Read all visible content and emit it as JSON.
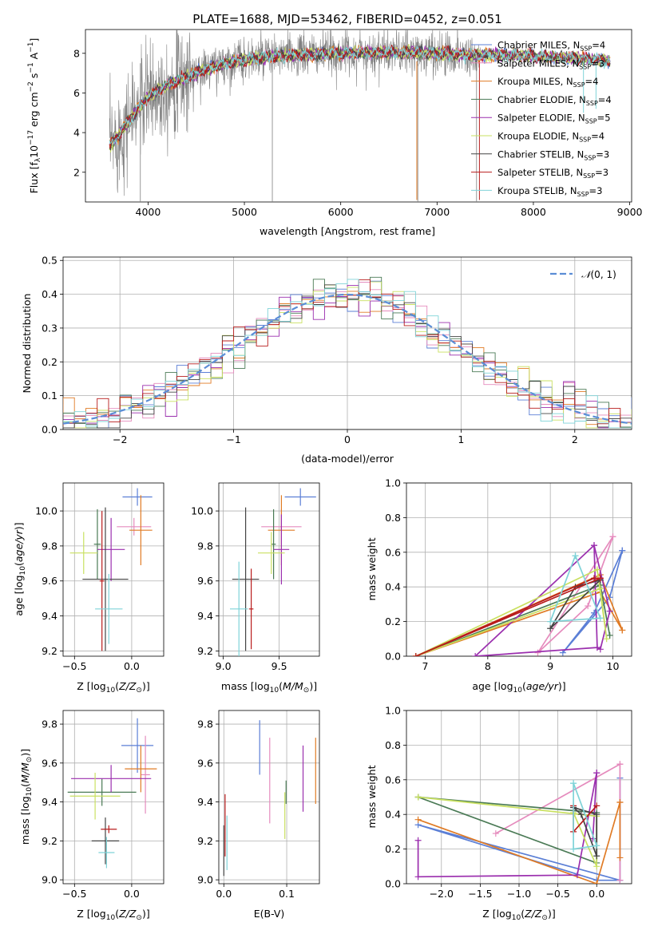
{
  "figure_title": "PLATE=1688, MJD=53462, FIBERID=0452, z=0.051",
  "colors": {
    "Chabrier MILES": "#5b7fd6",
    "Salpeter MILES": "#e58bbd",
    "Kroupa MILES": "#e07b25",
    "Chabrier ELODIE": "#4a7a55",
    "Salpeter ELODIE": "#9b2fae",
    "Kroupa ELODIE": "#c9e060",
    "Chabrier STELIB": "#444444",
    "Salpeter STELIB": "#b81c1c",
    "Kroupa STELIB": "#7fd3d8",
    "data": "#808080",
    "gauss": "#5b8dd6"
  },
  "chart_data": [
    {
      "id": "spectrum",
      "type": "line",
      "xlabel": "wavelength [Angstrom, rest frame]",
      "ylabel": "Flux [f",
      "xlim": [
        3350,
        9020
      ],
      "ylim": [
        0.5,
        9.2
      ],
      "xticks": [
        4000,
        5000,
        6000,
        7000,
        8000,
        9000
      ],
      "yticks": [
        2,
        4,
        6,
        8
      ],
      "legend_position": "upper right",
      "legend": [
        {
          "name": "Chabrier MILES",
          "nssp": "4"
        },
        {
          "name": "Salpeter MILES",
          "nssp": "3"
        },
        {
          "name": "Kroupa MILES",
          "nssp": "4"
        },
        {
          "name": "Chabrier ELODIE",
          "nssp": "4"
        },
        {
          "name": "Salpeter ELODIE",
          "nssp": "5"
        },
        {
          "name": "Kroupa ELODIE",
          "nssp": "4"
        },
        {
          "name": "Chabrier STELIB",
          "nssp": "3"
        },
        {
          "name": "Salpeter STELIB",
          "nssp": "3"
        },
        {
          "name": "Kroupa STELIB",
          "nssp": "3"
        }
      ],
      "continuum": {
        "x": [
          3600,
          3700,
          3800,
          3900,
          4000,
          4200,
          4400,
          4600,
          4800,
          5000,
          5500,
          6000,
          6500,
          7000,
          7400,
          7800,
          8200,
          8600,
          8800
        ],
        "y": [
          3.3,
          3.9,
          4.6,
          5.2,
          5.8,
          6.4,
          6.8,
          7.2,
          7.5,
          7.7,
          7.9,
          8.0,
          8.05,
          8.0,
          7.9,
          7.9,
          7.8,
          7.7,
          7.6
        ]
      },
      "data_range": [
        3600,
        7450
      ],
      "model_range": [
        3600,
        8800
      ]
    },
    {
      "id": "residuals",
      "type": "histogram",
      "xlabel": "(data-model)/error",
      "ylabel": "Normed distribution",
      "xlim": [
        -2.5,
        2.5
      ],
      "ylim": [
        0,
        0.51
      ],
      "xticks": [
        -2,
        -1,
        0,
        1,
        2
      ],
      "yticks": [
        0.0,
        0.1,
        0.2,
        0.3,
        0.4,
        0.5
      ],
      "bin_width": 0.1,
      "legend": "N(0,1)",
      "legend_position": "upper right"
    },
    {
      "id": "age-vs-metallicity",
      "type": "scatter",
      "xlabel": "Z [log10(Z/Zsun)]",
      "ylabel": "age [log10(age/yr)]",
      "xlim": [
        -0.6,
        0.28
      ],
      "ylim": [
        9.17,
        10.16
      ],
      "xticks": [
        -0.5,
        0.0
      ],
      "yticks": [
        9.2,
        9.4,
        9.6,
        9.8,
        10.0
      ],
      "points": [
        {
          "model": "Chabrier MILES",
          "x": 0.05,
          "xerr": 0.13,
          "y": 10.08,
          "yerr": 0.05
        },
        {
          "model": "Salpeter MILES",
          "x": 0.02,
          "xerr": 0.15,
          "y": 9.91,
          "yerr": 0.05
        },
        {
          "model": "Kroupa MILES",
          "x": 0.08,
          "xerr": 0.1,
          "y": 9.89,
          "yerr": 0.2
        },
        {
          "model": "Chabrier ELODIE",
          "x": -0.3,
          "xerr": 0.03,
          "y": 9.81,
          "yerr": 0.2
        },
        {
          "model": "Salpeter ELODIE",
          "x": -0.18,
          "xerr": 0.12,
          "y": 9.78,
          "yerr": 0.18
        },
        {
          "model": "Kroupa ELODIE",
          "x": -0.42,
          "xerr": 0.12,
          "y": 9.76,
          "yerr": 0.12
        },
        {
          "model": "Chabrier STELIB",
          "x": -0.23,
          "xerr": 0.2,
          "y": 9.61,
          "yerr": 0.41
        },
        {
          "model": "Salpeter STELIB",
          "x": -0.26,
          "xerr": 0.02,
          "y": 9.6,
          "yerr": 0.4
        },
        {
          "model": "Kroupa STELIB",
          "x": -0.2,
          "xerr": 0.12,
          "y": 9.44,
          "yerr": 0.2
        }
      ]
    },
    {
      "id": "age-vs-mass",
      "type": "scatter",
      "xlabel": "mass [log10(M/Msun)]",
      "xlim": [
        8.96,
        9.86
      ],
      "ylim": [
        9.17,
        10.16
      ],
      "xticks": [
        9.0,
        9.5
      ],
      "yticks": [
        9.2,
        9.4,
        9.6,
        9.8,
        10.0
      ],
      "points": [
        {
          "model": "Chabrier MILES",
          "x": 9.69,
          "xerr": 0.14,
          "y": 10.08,
          "yerr": 0.05
        },
        {
          "model": "Salpeter MILES",
          "x": 9.52,
          "xerr": 0.18,
          "y": 9.91,
          "yerr": 0.1
        },
        {
          "model": "Kroupa MILES",
          "x": 9.52,
          "xerr": 0.12,
          "y": 9.89,
          "yerr": 0.2
        },
        {
          "model": "Chabrier ELODIE",
          "x": 9.45,
          "xerr": 0.02,
          "y": 9.81,
          "yerr": 0.2
        },
        {
          "model": "Salpeter ELODIE",
          "x": 9.52,
          "xerr": 0.07,
          "y": 9.78,
          "yerr": 0.2
        },
        {
          "model": "Kroupa ELODIE",
          "x": 9.43,
          "xerr": 0.12,
          "y": 9.76,
          "yerr": 0.12
        },
        {
          "model": "Chabrier STELIB",
          "x": 9.2,
          "xerr": 0.12,
          "y": 9.61,
          "yerr": 0.41
        },
        {
          "model": "Salpeter STELIB",
          "x": 9.25,
          "xerr": 0.02,
          "y": 9.44,
          "yerr": 0.23
        },
        {
          "model": "Kroupa STELIB",
          "x": 9.14,
          "xerr": 0.08,
          "y": 9.44,
          "yerr": 0.27
        }
      ]
    },
    {
      "id": "mass-weight-vs-age",
      "type": "line",
      "xlabel": "age  [log10(age/yr)]",
      "ylabel": "mass weight",
      "xlim": [
        6.7,
        10.3
      ],
      "ylim": [
        0,
        1.0
      ],
      "xticks": [
        7,
        8,
        9,
        10
      ],
      "yticks": [
        0.0,
        0.2,
        0.4,
        0.6,
        0.8,
        1.0
      ],
      "series": [
        {
          "model": "Chabrier MILES",
          "x": [
            10.15,
            9.7,
            9.2,
            9.95,
            10.15
          ],
          "y": [
            0.61,
            0.25,
            0.02,
            0.34,
            0.61
          ]
        },
        {
          "model": "Salpeter MILES",
          "x": [
            10.0,
            9.6,
            8.8,
            10.0
          ],
          "y": [
            0.69,
            0.29,
            0.02,
            0.69
          ]
        },
        {
          "model": "Kroupa MILES",
          "x": [
            10.15,
            9.8,
            6.85,
            9.8,
            10.15
          ],
          "y": [
            0.15,
            0.47,
            0.0,
            0.37,
            0.15
          ]
        },
        {
          "model": "Chabrier ELODIE",
          "x": [
            9.95,
            9.8,
            6.85,
            9.8,
            9.95
          ],
          "y": [
            0.12,
            0.41,
            0.0,
            0.41,
            0.12
          ]
        },
        {
          "model": "Salpeter ELODIE",
          "x": [
            9.7,
            9.75,
            9.8,
            9.95,
            9.7,
            7.8,
            9.75
          ],
          "y": [
            0.64,
            0.05,
            0.04,
            0.26,
            0.64,
            0.0,
            0.05
          ]
        },
        {
          "model": "Kroupa ELODIE",
          "x": [
            9.75,
            9.9,
            9.8,
            6.85,
            9.75
          ],
          "y": [
            0.5,
            0.1,
            0.39,
            0.0,
            0.5
          ]
        },
        {
          "model": "Chabrier STELIB",
          "x": [
            9.8,
            9.4,
            9.0,
            9.8
          ],
          "y": [
            0.44,
            0.4,
            0.16,
            0.44
          ]
        },
        {
          "model": "Salpeter STELIB",
          "x": [
            9.8,
            9.7,
            6.85,
            9.8
          ],
          "y": [
            0.45,
            0.45,
            0.0,
            0.45
          ]
        },
        {
          "model": "Kroupa STELIB",
          "x": [
            9.4,
            9.0,
            9.8,
            9.4
          ],
          "y": [
            0.58,
            0.2,
            0.22,
            0.58
          ]
        }
      ]
    },
    {
      "id": "mass-vs-metallicity",
      "type": "scatter",
      "xlabel": "Z [log10(Z/Zsun)]",
      "ylabel": "mass [log10(M/Msun)]",
      "xlim": [
        -0.6,
        0.28
      ],
      "ylim": [
        8.98,
        9.87
      ],
      "xticks": [
        -0.5,
        0.0
      ],
      "yticks": [
        9.0,
        9.2,
        9.4,
        9.6,
        9.8
      ],
      "points": [
        {
          "model": "Chabrier MILES",
          "x": 0.05,
          "xerr": 0.14,
          "y": 9.69,
          "yerr": 0.14
        },
        {
          "model": "Salpeter MILES",
          "x": 0.12,
          "xerr": 0.04,
          "y": 9.54,
          "yerr": 0.2
        },
        {
          "model": "Kroupa MILES",
          "x": 0.08,
          "xerr": 0.14,
          "y": 9.57,
          "yerr": 0.12
        },
        {
          "model": "Chabrier ELODIE",
          "x": -0.26,
          "xerr": 0.3,
          "y": 9.45,
          "yerr": 0.07
        },
        {
          "model": "Salpeter ELODIE",
          "x": -0.18,
          "xerr": 0.35,
          "y": 9.52,
          "yerr": 0.07
        },
        {
          "model": "Kroupa ELODIE",
          "x": -0.32,
          "xerr": 0.22,
          "y": 9.43,
          "yerr": 0.12
        },
        {
          "model": "Chabrier STELIB",
          "x": -0.23,
          "xerr": 0.12,
          "y": 9.2,
          "yerr": 0.12
        },
        {
          "model": "Salpeter STELIB",
          "x": -0.2,
          "xerr": 0.07,
          "y": 9.26,
          "yerr": 0.02
        },
        {
          "model": "Kroupa STELIB",
          "x": -0.22,
          "xerr": 0.07,
          "y": 9.14,
          "yerr": 0.08
        }
      ]
    },
    {
      "id": "mass-vs-extinction",
      "type": "scatter",
      "xlabel": "E(B-V)",
      "xlim": [
        -0.008,
        0.152
      ],
      "ylim": [
        8.98,
        9.87
      ],
      "xticks": [
        0.0,
        0.1
      ],
      "yticks": [
        9.0,
        9.2,
        9.4,
        9.6,
        9.8
      ],
      "points": [
        {
          "model": "Chabrier MILES",
          "x": 0.057,
          "y": 9.68,
          "yerr": 0.14
        },
        {
          "model": "Salpeter MILES",
          "x": 0.073,
          "y": 9.51,
          "yerr": 0.22
        },
        {
          "model": "Kroupa MILES",
          "x": 0.146,
          "y": 9.56,
          "yerr": 0.17
        },
        {
          "model": "Chabrier ELODIE",
          "x": 0.099,
          "y": 9.45,
          "yerr": 0.06
        },
        {
          "model": "Salpeter ELODIE",
          "x": 0.126,
          "y": 9.52,
          "yerr": 0.17
        },
        {
          "model": "Kroupa ELODIE",
          "x": 0.097,
          "y": 9.33,
          "yerr": 0.12
        },
        {
          "model": "Chabrier STELIB",
          "x": 0.0,
          "y": 9.15,
          "yerr": 0.13
        },
        {
          "model": "Salpeter STELIB",
          "x": 0.002,
          "y": 9.28,
          "yerr": 0.16
        },
        {
          "model": "Kroupa STELIB",
          "x": 0.005,
          "y": 9.19,
          "yerr": 0.14
        }
      ]
    },
    {
      "id": "mass-weight-vs-metallicity",
      "type": "line",
      "xlabel": "Z [log10(Z/Zsun)]",
      "ylabel": "mass weight",
      "xlim": [
        -2.45,
        0.45
      ],
      "ylim": [
        0,
        1.0
      ],
      "xticks": [
        -2.0,
        -1.5,
        -1.0,
        -0.5,
        0.0
      ],
      "yticks": [
        0.0,
        0.2,
        0.4,
        0.6,
        0.8,
        1.0
      ],
      "series": [
        {
          "model": "Chabrier MILES",
          "x": [
            0.3,
            0.3,
            -2.3,
            0.0,
            0.3
          ],
          "y": [
            0.61,
            0.02,
            0.34,
            0.02,
            0.02
          ]
        },
        {
          "model": "Salpeter MILES",
          "x": [
            0.3,
            -1.3,
            0.3,
            0.3
          ],
          "y": [
            0.69,
            0.29,
            0.69,
            0.02
          ]
        },
        {
          "model": "Kroupa MILES",
          "x": [
            0.3,
            0.3,
            0.0,
            -2.3,
            0.0,
            0.3
          ],
          "y": [
            0.15,
            0.47,
            0.0,
            0.37,
            0.0,
            0.47
          ]
        },
        {
          "model": "Chabrier ELODIE",
          "x": [
            -2.3,
            0.0,
            0.0,
            -2.3
          ],
          "y": [
            0.5,
            0.41,
            0.12,
            0.5
          ]
        },
        {
          "model": "Salpeter ELODIE",
          "x": [
            -2.3,
            -2.3,
            -0.25,
            0.0,
            -0.05,
            0.0
          ],
          "y": [
            0.25,
            0.04,
            0.05,
            0.64,
            0.26,
            0.64
          ]
        },
        {
          "model": "Kroupa ELODIE",
          "x": [
            -2.3,
            0.0,
            0.0,
            -0.3
          ],
          "y": [
            0.5,
            0.39,
            0.1,
            0.41
          ]
        },
        {
          "model": "Chabrier STELIB",
          "x": [
            -0.3,
            -0.2,
            0.0,
            0.0,
            -0.3
          ],
          "y": [
            0.44,
            0.4,
            0.16,
            0.4,
            0.44
          ]
        },
        {
          "model": "Salpeter STELIB",
          "x": [
            -0.3,
            -0.3,
            0.0
          ],
          "y": [
            0.45,
            0.3,
            0.45
          ]
        },
        {
          "model": "Kroupa STELIB",
          "x": [
            -0.3,
            -0.3,
            0.0,
            -0.3
          ],
          "y": [
            0.58,
            0.2,
            0.22,
            0.58
          ]
        }
      ]
    }
  ]
}
